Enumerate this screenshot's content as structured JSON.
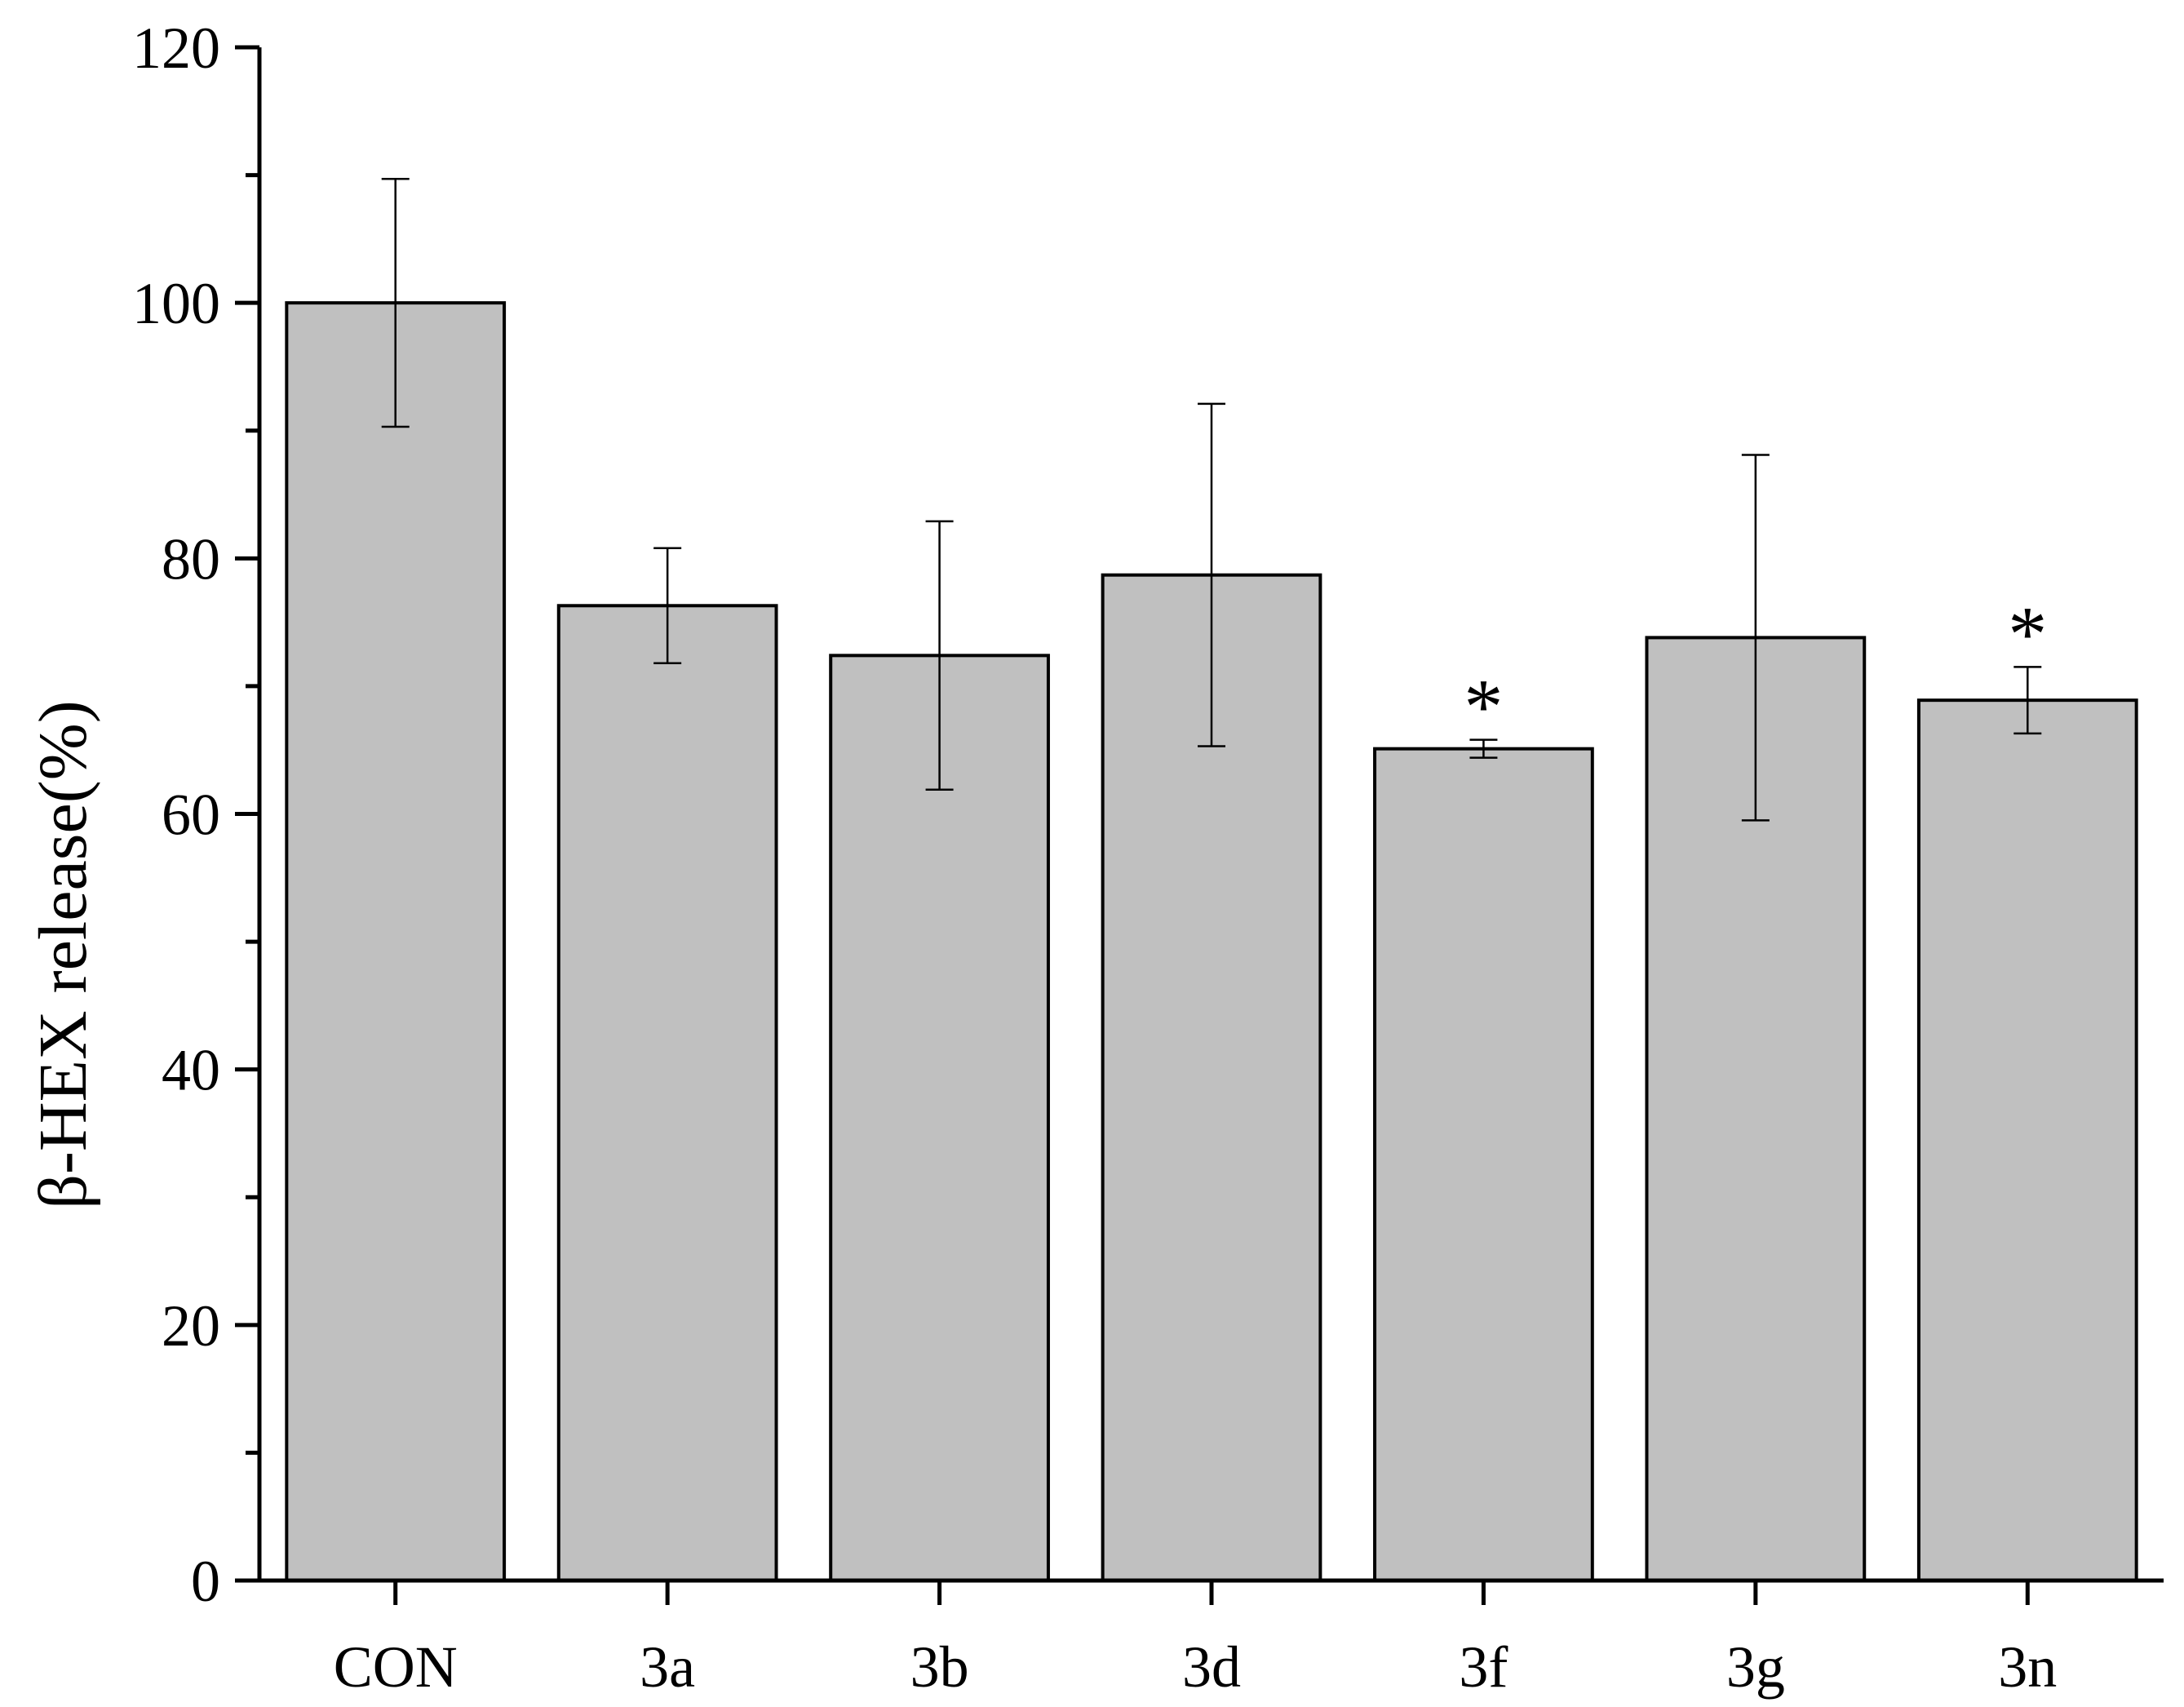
{
  "chart_data": {
    "type": "bar",
    "ylabel": "β-HEX release(%)",
    "xlabel": "",
    "ylim": [
      0,
      120
    ],
    "yticks": [
      0,
      20,
      40,
      60,
      80,
      100,
      120
    ],
    "yminor_step": 10,
    "categories": [
      "CON",
      "3a",
      "3b",
      "3d",
      "3f",
      "3g",
      "3n"
    ],
    "values": [
      100.0,
      76.3,
      72.4,
      78.7,
      65.1,
      73.8,
      68.9
    ],
    "errors": [
      9.7,
      4.5,
      10.5,
      13.4,
      0.7,
      14.3,
      2.6
    ],
    "annotations": [
      "",
      "",
      "",
      "",
      "*",
      "",
      "*"
    ],
    "bar_color": "#c0c0c0",
    "edge_color": "#000000",
    "grid": false,
    "legend": "none"
  }
}
